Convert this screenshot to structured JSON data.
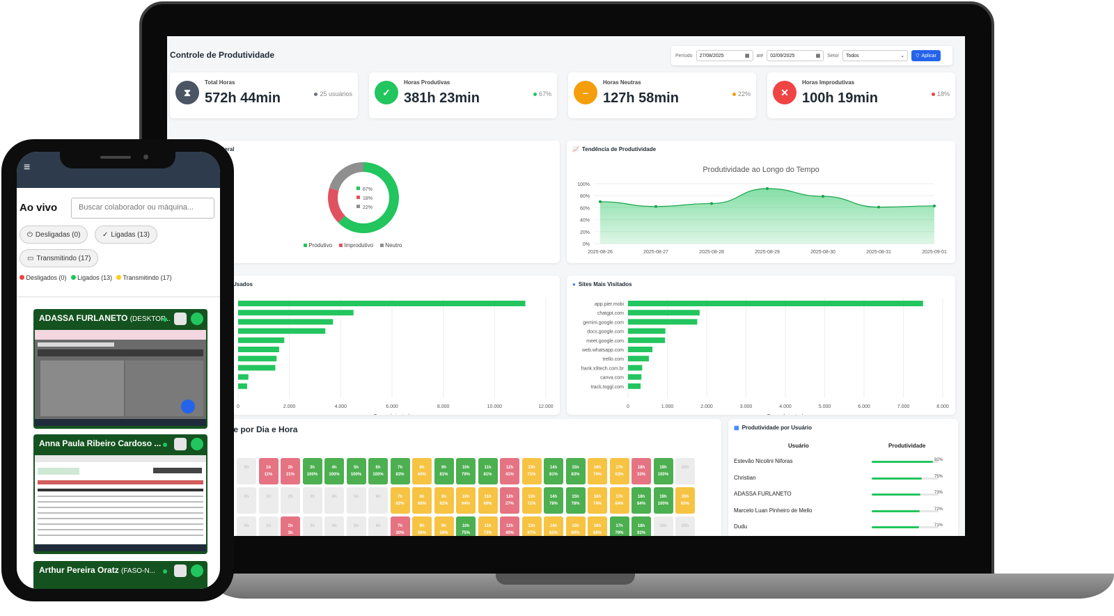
{
  "dashboard": {
    "title": "Controle de Produtividade",
    "filters": {
      "period_label": "Período",
      "start_date": "27/08/2025",
      "until_label": "até",
      "end_date": "02/09/2025",
      "sector_label": "Setor",
      "sector_value": "Todos",
      "apply_label": "Aplicar"
    },
    "stats": [
      {
        "label": "Total Horas",
        "value": "572h 44min",
        "side": "25 usuários",
        "color": "#4b5563",
        "icon": "hourglass-icon"
      },
      {
        "label": "Horas Produtivas",
        "value": "381h 23min",
        "side": "67%",
        "color": "#22c55e",
        "icon": "check-circle-icon"
      },
      {
        "label": "Horas Neutras",
        "value": "127h 58min",
        "side": "22%",
        "color": "#f59e0b",
        "icon": "minus-circle-icon"
      },
      {
        "label": "Horas Improdutivas",
        "value": "100h 19min",
        "side": "18%",
        "color": "#ef4444",
        "icon": "x-circle-icon"
      }
    ],
    "overview": {
      "title": "Geral",
      "legend": [
        "Produtivo",
        "Improdutivo",
        "Neutro"
      ]
    },
    "trend": {
      "title": "Tendência de Produtividade",
      "chart_title": "Produtividade ao Longo do Tempo"
    },
    "apps": {
      "title": "Usados",
      "xlabel": "Tempo (minutos)"
    },
    "sites": {
      "title": "Sites Mais Visitados",
      "xlabel": "Tempo (minutos)"
    },
    "heatmap": {
      "title": "le por Dia e Hora"
    },
    "users": {
      "title": "Produtividade por Usuário",
      "col_user": "Usuário",
      "col_prod": "Produtividade",
      "rows": [
        {
          "name": "Estevão Nicolini Niforas",
          "pct": "92%",
          "value": 92
        },
        {
          "name": "Christian",
          "pct": "75%",
          "value": 75
        },
        {
          "name": "ADASSA FURLANETO",
          "pct": "73%",
          "value": 73
        },
        {
          "name": "Marcelo Luan Pinheiro de Mello",
          "pct": "72%",
          "value": 72
        },
        {
          "name": "Dudu",
          "pct": "71%",
          "value": 71
        }
      ]
    }
  },
  "chart_data": [
    {
      "type": "pie",
      "title": "Geral",
      "categories": [
        "Produtivo",
        "Improdutivo",
        "Neutro"
      ],
      "values": [
        67,
        18,
        22
      ],
      "labels": [
        "67%",
        "18%",
        "22%"
      ],
      "colors": [
        "#22c55e",
        "#e05260",
        "#8f8f8f"
      ]
    },
    {
      "type": "area",
      "title": "Produtividade ao Longo do Tempo",
      "x": [
        "2025-08-26",
        "2025-08-27",
        "2025-08-28",
        "2025-08-29",
        "2025-08-30",
        "2025-08-31",
        "2025-09-01"
      ],
      "values": [
        70,
        62,
        67,
        92,
        79,
        61,
        63
      ],
      "y_ticks": [
        "0%",
        "20%",
        "40%",
        "60%",
        "80%",
        "100%"
      ],
      "ylim": [
        0,
        100
      ]
    },
    {
      "type": "bar",
      "title": "Usados",
      "orientation": "horizontal",
      "values": [
        11200,
        4500,
        3700,
        3400,
        1800,
        1600,
        1500,
        1450,
        400,
        350
      ],
      "x_ticks": [
        "0",
        "2.000",
        "4.000",
        "6.000",
        "8.000",
        "10.000",
        "12.000"
      ],
      "xlim": [
        0,
        12000
      ],
      "xlabel": "Tempo (minutos)"
    },
    {
      "type": "bar",
      "title": "Sites Mais Visitados",
      "orientation": "horizontal",
      "categories": [
        "app.pier.mobi",
        "chatgpt.com",
        "gemini.google.com",
        "docs.google.com",
        "meet.google.com",
        "web.whatsapp.com",
        "trello.com",
        "frank.x9tech.com.br",
        "canva.com",
        "track.toggl.com"
      ],
      "values": [
        7500,
        1820,
        1760,
        950,
        940,
        620,
        530,
        360,
        340,
        320
      ],
      "x_ticks": [
        "0",
        "1.000",
        "2.000",
        "3.000",
        "4.000",
        "5.000",
        "6.000",
        "7.000",
        "8.000"
      ],
      "xlim": [
        0,
        8000
      ],
      "xlabel": "Tempo (minutos)"
    },
    {
      "type": "heatmap",
      "title": "le por Dia e Hora",
      "rows": [
        [
          [
            "0h",
            ""
          ],
          [
            "1h",
            "11%"
          ],
          [
            "2h",
            "21%"
          ],
          [
            "3h",
            "100%"
          ],
          [
            "4h",
            "100%"
          ],
          [
            "5h",
            "100%"
          ],
          [
            "6h",
            "100%"
          ],
          [
            "7h",
            "83%"
          ],
          [
            "8h",
            "60%"
          ],
          [
            "9h",
            "81%"
          ],
          [
            "10h",
            "79%"
          ],
          [
            "11h",
            "81%"
          ],
          [
            "12h",
            "41%"
          ],
          [
            "13h",
            "71%"
          ],
          [
            "14h",
            "81%"
          ],
          [
            "15h",
            "83%"
          ],
          [
            "16h",
            "74%"
          ],
          [
            "17h",
            "63%"
          ],
          [
            "18h",
            "33%"
          ],
          [
            "19h",
            "100%"
          ],
          [
            "20h",
            ""
          ]
        ],
        [
          [
            "0h",
            ""
          ],
          [
            "1h",
            ""
          ],
          [
            "2h",
            ""
          ],
          [
            "3h",
            ""
          ],
          [
            "4h",
            ""
          ],
          [
            "5h",
            ""
          ],
          [
            "6h",
            ""
          ],
          [
            "7h",
            "62%"
          ],
          [
            "8h",
            "66%"
          ],
          [
            "9h",
            "62%"
          ],
          [
            "10h",
            "64%"
          ],
          [
            "11h",
            "68%"
          ],
          [
            "12h",
            "27%"
          ],
          [
            "13h",
            "71%"
          ],
          [
            "14h",
            "78%"
          ],
          [
            "15h",
            "78%"
          ],
          [
            "16h",
            "74%"
          ],
          [
            "17h",
            "64%"
          ],
          [
            "18h",
            "84%"
          ],
          [
            "19h",
            "100%"
          ],
          [
            "20h",
            "60%"
          ]
        ],
        [
          [
            "0h",
            ""
          ],
          [
            "1h",
            ""
          ],
          [
            "2h",
            "3h"
          ],
          [
            "3h",
            ""
          ],
          [
            "4h",
            ""
          ],
          [
            "5h",
            ""
          ],
          [
            "6h",
            ""
          ],
          [
            "7h",
            "30%"
          ],
          [
            "8h",
            "56%"
          ],
          [
            "9h",
            "58%"
          ],
          [
            "10h",
            "75%"
          ],
          [
            "11h",
            "73%"
          ],
          [
            "12h",
            "40%"
          ],
          [
            "13h",
            "67%"
          ],
          [
            "14h",
            "62%"
          ],
          [
            "15h",
            "60%"
          ],
          [
            "16h",
            "68%"
          ],
          [
            "17h",
            "79%"
          ],
          [
            "18h",
            "93%"
          ],
          [
            "19h",
            ""
          ],
          [
            "20h",
            ""
          ]
        ]
      ]
    }
  ],
  "phone": {
    "live_title": "Ao vivo",
    "search_placeholder": "Buscar colaborador ou máquina...",
    "chips": {
      "off": "Desligadas (0)",
      "on": "Ligadas (13)",
      "streaming": "Transmitindo (17)"
    },
    "legend": {
      "off": "Desligados (0)",
      "on": "Ligados (13)",
      "streaming": "Transmitindo (17)"
    },
    "cards": [
      {
        "name": "ADASSA FURLANETO",
        "suffix": "(DESKTOP..."
      },
      {
        "name": "Anna Paula Ribeiro Cardoso ...",
        "suffix": ""
      },
      {
        "name": "Arthur Pereira Oratz",
        "suffix": "(FASO-N..."
      }
    ]
  }
}
